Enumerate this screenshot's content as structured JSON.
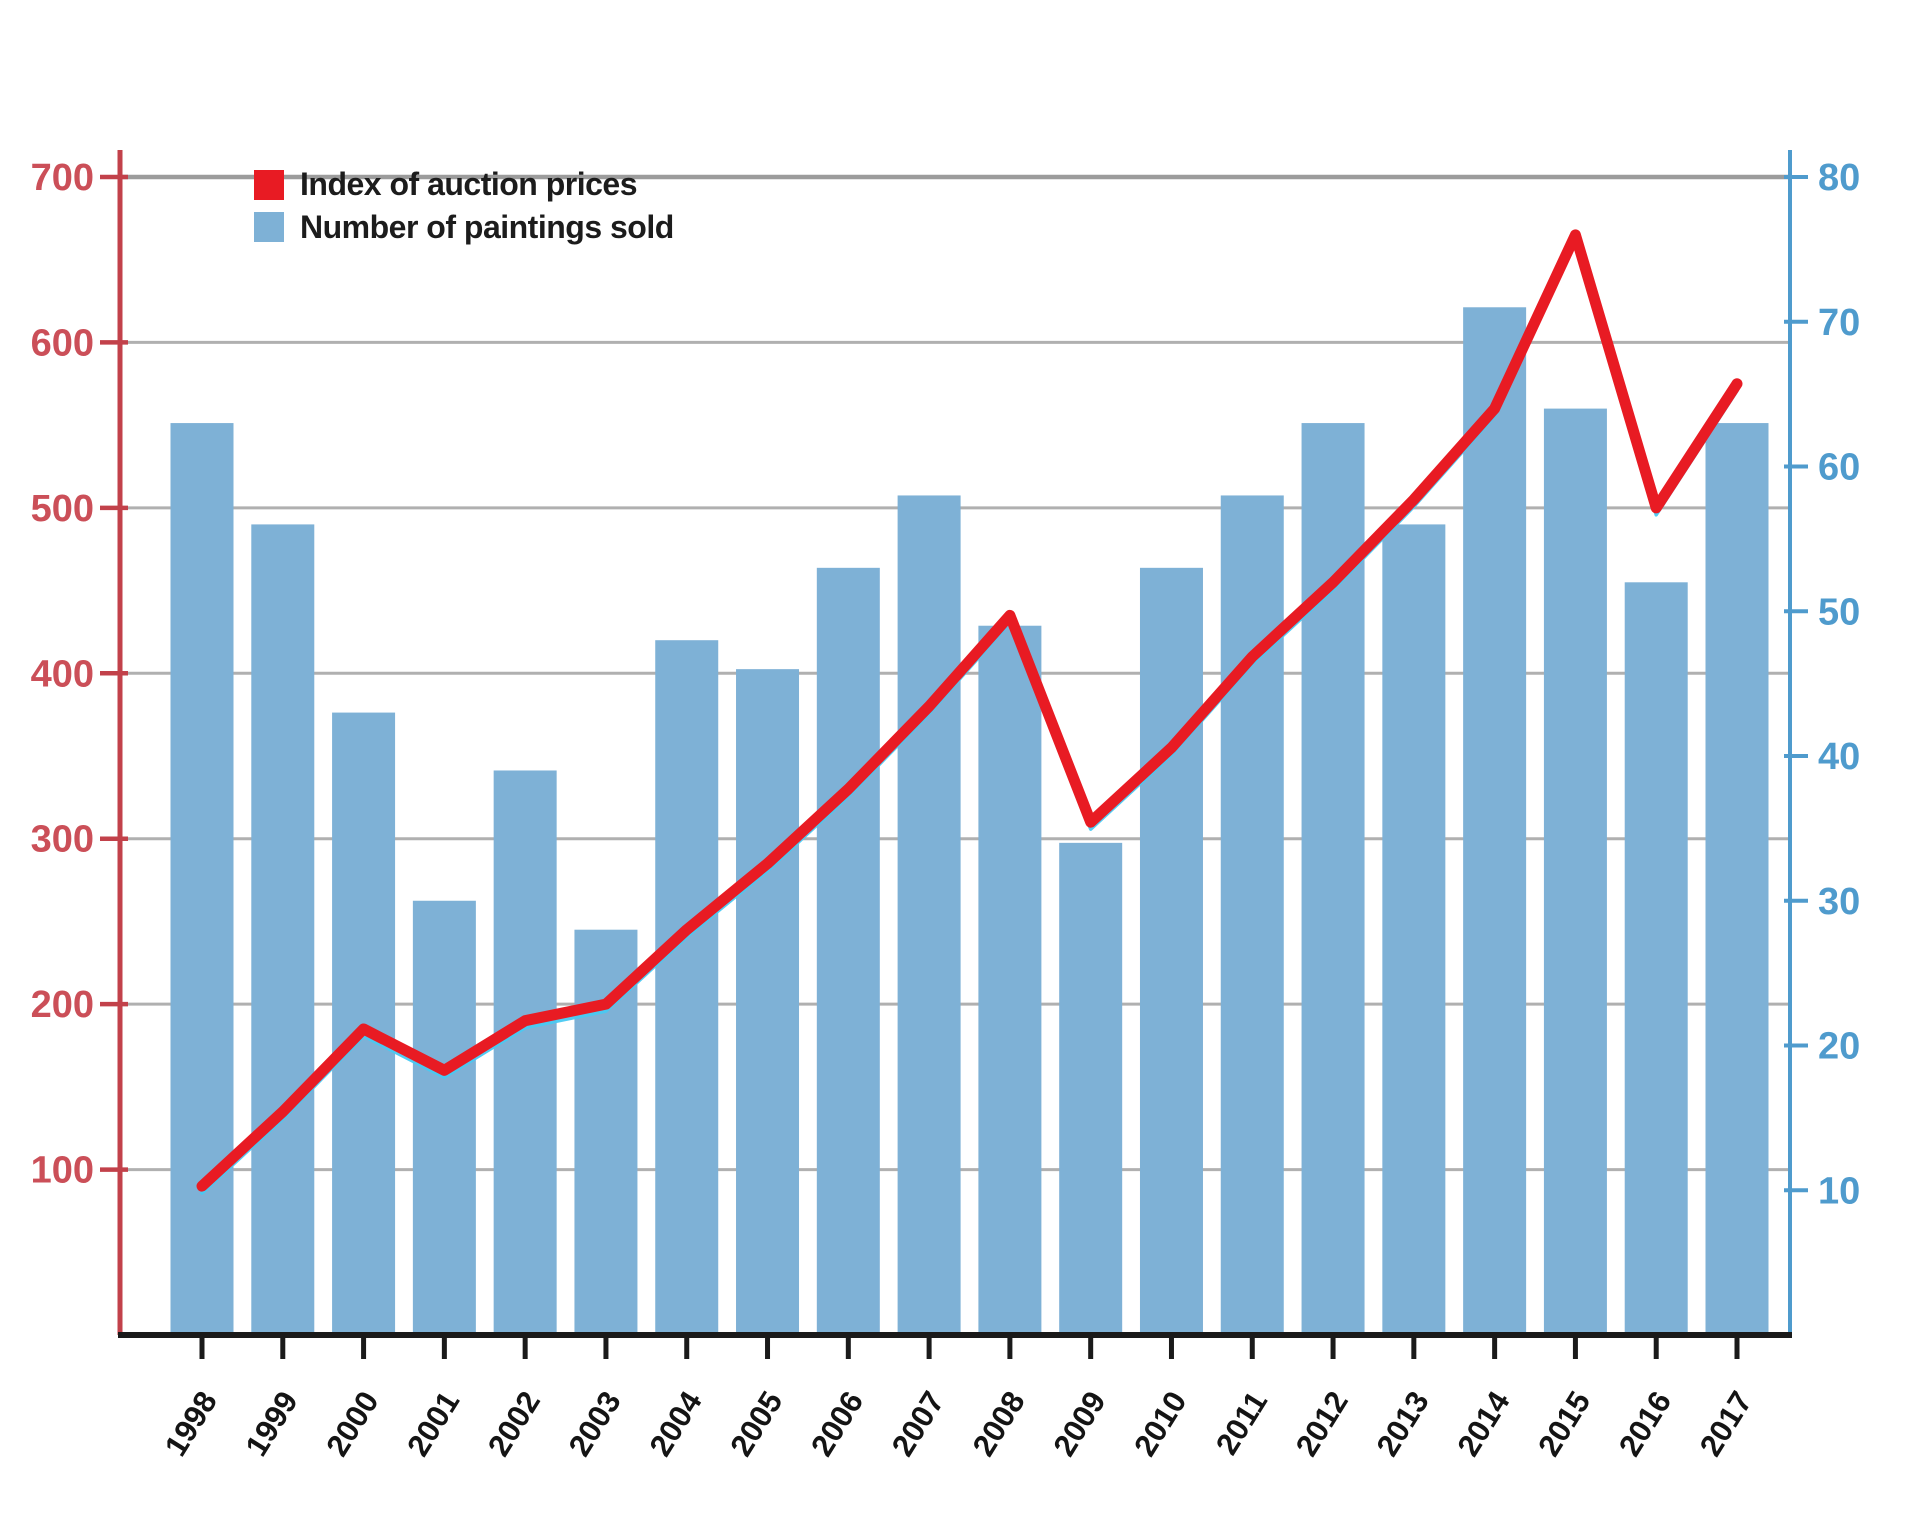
{
  "chart_data": {
    "type": "bar+line",
    "title": "",
    "categories": [
      "1998",
      "1999",
      "2000",
      "2001",
      "2002",
      "2003",
      "2004",
      "2005",
      "2006",
      "2007",
      "2008",
      "2009",
      "2010",
      "2011",
      "2012",
      "2013",
      "2014",
      "2015",
      "2016",
      "2017"
    ],
    "series": [
      {
        "name": "Index of auction prices",
        "type": "line",
        "axis": "left",
        "color": "#e81b23",
        "shadow_color": "#49c9f2",
        "values": [
          90,
          135,
          185,
          160,
          190,
          200,
          245,
          285,
          330,
          380,
          435,
          310,
          355,
          410,
          455,
          505,
          560,
          665,
          500,
          575
        ]
      },
      {
        "name": "Number of paintings sold",
        "type": "bar",
        "axis": "right",
        "color": "#7eb1d6",
        "values": [
          63,
          56,
          43,
          30,
          39,
          28,
          48,
          46,
          53,
          58,
          49,
          34,
          53,
          58,
          63,
          56,
          71,
          64,
          52,
          63
        ]
      }
    ],
    "left_axis": {
      "range": [
        0,
        700
      ],
      "tick_labels": [
        "100",
        "200",
        "300",
        "400",
        "500",
        "600",
        "700"
      ],
      "tick_values": [
        100,
        200,
        300,
        400,
        500,
        600,
        700
      ],
      "axis_color": "#c2414a",
      "label_color": "#cb4f58"
    },
    "right_axis": {
      "range": [
        0,
        80
      ],
      "tick_labels": [
        "10",
        "20",
        "30",
        "40",
        "50",
        "60",
        "70",
        "80"
      ],
      "tick_values": [
        10,
        20,
        30,
        40,
        50,
        60,
        70,
        80
      ],
      "axis_color": "#4f9bcd",
      "label_color": "#4f9bcd"
    },
    "x_axis": {
      "axis_color": "#1a1a1a",
      "label_color": "#141414"
    },
    "grid": {
      "show": true,
      "color": "#b0b0b0",
      "frame_color": "#9c9c9c",
      "line_values": [
        100,
        200,
        300,
        400,
        500,
        600
      ]
    },
    "legend_position": "top-left"
  },
  "legend": {
    "items": [
      {
        "label": "Index of auction prices"
      },
      {
        "label": "Number of paintings sold"
      }
    ]
  }
}
